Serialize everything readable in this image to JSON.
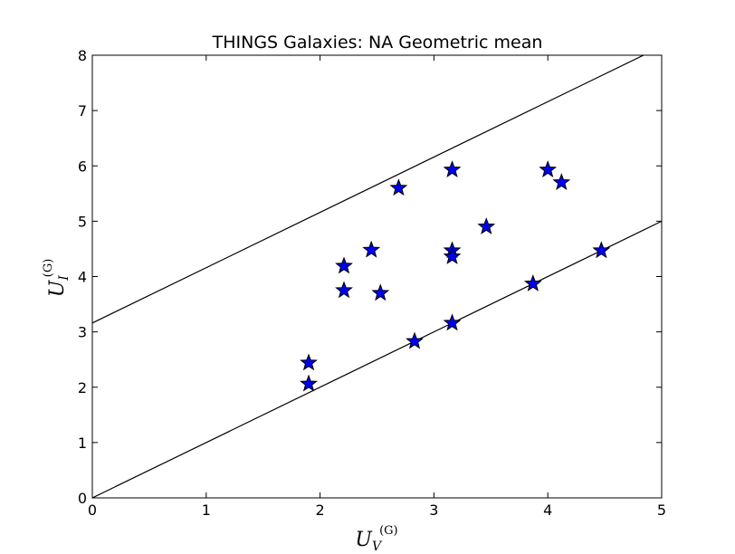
{
  "chart_data": {
    "type": "scatter",
    "title": "THINGS Galaxies: NA Geometric mean",
    "xlabel": {
      "base": "U",
      "sub": "V",
      "sup": "(G)"
    },
    "ylabel": {
      "base": "U",
      "sub": "I",
      "sup": "(G)"
    },
    "xlim": [
      0,
      5
    ],
    "ylim": [
      0,
      8
    ],
    "xticks": [
      "0",
      "1",
      "2",
      "3",
      "4",
      "5"
    ],
    "yticks": [
      "0",
      "1",
      "2",
      "3",
      "4",
      "5",
      "6",
      "7",
      "8"
    ],
    "grid": false,
    "marker": "star",
    "marker_color": "#0000ee",
    "points": [
      {
        "x": 1.9,
        "y": 2.44
      },
      {
        "x": 1.9,
        "y": 2.06
      },
      {
        "x": 2.21,
        "y": 4.19
      },
      {
        "x": 2.21,
        "y": 3.75
      },
      {
        "x": 2.45,
        "y": 4.48
      },
      {
        "x": 2.53,
        "y": 3.7
      },
      {
        "x": 2.69,
        "y": 5.6
      },
      {
        "x": 2.83,
        "y": 2.83
      },
      {
        "x": 3.16,
        "y": 5.93
      },
      {
        "x": 3.16,
        "y": 4.47
      },
      {
        "x": 3.16,
        "y": 4.36
      },
      {
        "x": 3.16,
        "y": 3.16
      },
      {
        "x": 3.46,
        "y": 4.9
      },
      {
        "x": 3.87,
        "y": 3.87
      },
      {
        "x": 4.0,
        "y": 5.93
      },
      {
        "x": 4.12,
        "y": 5.7
      },
      {
        "x": 4.47,
        "y": 4.47
      }
    ],
    "lines": [
      {
        "x": [
          0,
          5
        ],
        "y": [
          0,
          5
        ]
      },
      {
        "x": [
          0,
          5
        ],
        "y": [
          3.16,
          8.16
        ]
      }
    ]
  }
}
